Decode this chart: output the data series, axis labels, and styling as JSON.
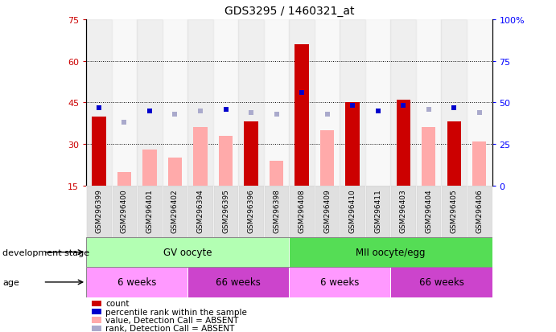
{
  "title": "GDS3295 / 1460321_at",
  "samples": [
    "GSM296399",
    "GSM296400",
    "GSM296401",
    "GSM296402",
    "GSM296394",
    "GSM296395",
    "GSM296396",
    "GSM296398",
    "GSM296408",
    "GSM296409",
    "GSM296410",
    "GSM296411",
    "GSM296403",
    "GSM296404",
    "GSM296405",
    "GSM296406"
  ],
  "count_values": [
    40,
    null,
    null,
    null,
    null,
    null,
    38,
    null,
    66,
    null,
    45,
    null,
    46,
    null,
    38,
    null
  ],
  "count_absent_values": [
    null,
    20,
    28,
    25,
    36,
    33,
    null,
    24,
    null,
    35,
    null,
    null,
    null,
    36,
    null,
    31
  ],
  "percentile_rank": [
    47,
    null,
    45,
    null,
    null,
    46,
    null,
    null,
    56,
    null,
    48,
    45,
    48,
    null,
    47,
    null
  ],
  "percentile_rank_absent": [
    null,
    38,
    null,
    43,
    45,
    null,
    44,
    43,
    null,
    43,
    null,
    null,
    null,
    46,
    null,
    44
  ],
  "ylim_left": [
    15,
    75
  ],
  "ylim_right": [
    0,
    100
  ],
  "yticks_left": [
    15,
    30,
    45,
    60,
    75
  ],
  "yticks_right": [
    0,
    25,
    50,
    75,
    100
  ],
  "ytick_labels_left": [
    "15",
    "30",
    "45",
    "60",
    "75"
  ],
  "ytick_labels_right": [
    "0",
    "25",
    "50",
    "75",
    "100%"
  ],
  "hlines": [
    30,
    45,
    60
  ],
  "color_count": "#cc0000",
  "color_count_absent": "#ffaaaa",
  "color_rank": "#0000cc",
  "color_rank_absent": "#aaaacc",
  "groups": [
    {
      "label": "GV oocyte",
      "start": 0,
      "end": 7,
      "color": "#b3ffb3"
    },
    {
      "label": "MII oocyte/egg",
      "start": 8,
      "end": 15,
      "color": "#55dd55"
    }
  ],
  "age_groups": [
    {
      "label": "6 weeks",
      "start": 0,
      "end": 3,
      "color": "#ff99ff"
    },
    {
      "label": "66 weeks",
      "start": 4,
      "end": 7,
      "color": "#cc44cc"
    },
    {
      "label": "6 weeks",
      "start": 8,
      "end": 11,
      "color": "#ff99ff"
    },
    {
      "label": "66 weeks",
      "start": 12,
      "end": 15,
      "color": "#cc44cc"
    }
  ],
  "legend_items": [
    {
      "label": "count",
      "color": "#cc0000",
      "type": "square"
    },
    {
      "label": "percentile rank within the sample",
      "color": "#0000cc",
      "type": "square"
    },
    {
      "label": "value, Detection Call = ABSENT",
      "color": "#ffaaaa",
      "type": "square"
    },
    {
      "label": "rank, Detection Call = ABSENT",
      "color": "#aaaacc",
      "type": "square"
    }
  ],
  "dev_stage_label": "development stage",
  "age_label": "age"
}
